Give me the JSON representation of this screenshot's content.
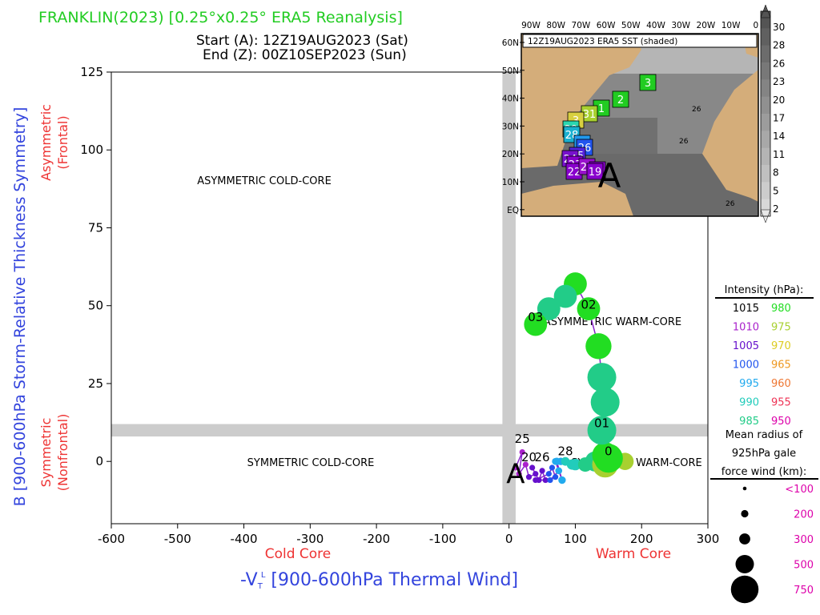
{
  "title": "FRANKLIN(2023) [0.25°x0.25° ERA5 Reanalysis]",
  "start_label": "Start (A): 12Z19AUG2023 (Sat)",
  "end_label": "End (Z): 00Z10SEP2023 (Sun)",
  "ylabel": "B [900-600hPa Storm-Relative Thickness Symmetry]",
  "ylabel_top": "Asymmetric",
  "ylabel_top2": "(Frontal)",
  "ylabel_bottom": "Symmetric",
  "ylabel_bottom2": "(Nonfrontal)",
  "xlabel": "-V",
  "xlabel_sub": "T",
  "xlabel_sup": "L",
  "xlabel_rest": " [900-600hPa Thermal Wind]",
  "xlabel_left": "Cold Core",
  "xlabel_right": "Warm Core",
  "quadrants": {
    "asym_cold": "ASYMMETRIC COLD-CORE",
    "asym_warm": "ASYMMETRIC WARM-CORE",
    "sym_cold": "SYMMETRIC COLD-CORE",
    "sym_warm": "SYMMETRIC WARM-CORE"
  },
  "colors": {
    "title": "#22cc22",
    "ylabel": "#3344dd",
    "subaxis": "#ee3333",
    "magenta": "#dd00aa",
    "zeroband": "#cccccc"
  },
  "inset": {
    "title": "12Z19AUG2023 ERA5 SST (shaded)",
    "lon_labels": [
      "90W",
      "80W",
      "70W",
      "60W",
      "50W",
      "40W",
      "30W",
      "20W",
      "10W",
      "0"
    ],
    "lat_labels": [
      "60N",
      "50N",
      "40N",
      "30N",
      "20N",
      "10N",
      "EQ"
    ],
    "contour_labels": [
      "26",
      "26",
      "26"
    ],
    "colorbar_labels": [
      "30",
      "28",
      "26",
      "23",
      "20",
      "17",
      "14",
      "11",
      "8",
      "5",
      "2"
    ],
    "start_marker": "A",
    "track_markers": [
      {
        "label": "3",
        "color": "#22cc22"
      },
      {
        "label": "2",
        "color": "#22cc22"
      },
      {
        "label": "1",
        "color": "#22cc22"
      },
      {
        "label": "31",
        "color": "#a8d030"
      },
      {
        "label": "3",
        "color": "#d8d040"
      },
      {
        "label": "29",
        "color": "#2ad6b0"
      },
      {
        "label": "28",
        "color": "#1ab0d0"
      },
      {
        "label": "27",
        "color": "#2299ee"
      },
      {
        "label": "26",
        "color": "#2255ee"
      },
      {
        "label": "25",
        "color": "#5522dd"
      },
      {
        "label": "24",
        "color": "#7711cc"
      },
      {
        "label": "23",
        "color": "#8800cc"
      },
      {
        "label": "22",
        "color": "#8800cc"
      },
      {
        "label": "21",
        "color": "#9911cc"
      },
      {
        "label": "20",
        "color": "#8800cc"
      },
      {
        "label": "19",
        "color": "#8800cc"
      }
    ]
  },
  "legend": {
    "intensity_title": "Intensity (hPa):",
    "intensity": [
      {
        "left": "1015",
        "left_color": "#000000",
        "right": "980",
        "right_color": "#22dd22"
      },
      {
        "left": "1010",
        "left_color": "#aa22cc",
        "right": "975",
        "right_color": "#a8d030"
      },
      {
        "left": "1005",
        "left_color": "#6611cc",
        "right": "970",
        "right_color": "#ddcc22"
      },
      {
        "left": "1000",
        "left_color": "#2255ee",
        "right": "965",
        "right_color": "#ee9922"
      },
      {
        "left": "995",
        "left_color": "#22aaee",
        "right": "960",
        "right_color": "#ee7733"
      },
      {
        "left": "990",
        "left_color": "#22ccbb",
        "right": "955",
        "right_color": "#ee3355"
      },
      {
        "left": "985",
        "left_color": "#22cc88",
        "right": "950",
        "right_color": "#dd00aa"
      }
    ],
    "radius_title_1": "Mean radius of",
    "radius_title_2": "925hPa gale",
    "radius_title_3": "force wind (km):",
    "radius": [
      {
        "label": "<100",
        "size": 1
      },
      {
        "label": "200",
        "size": 2
      },
      {
        "label": "300",
        "size": 3
      },
      {
        "label": "500",
        "size": 5
      },
      {
        "label": "750",
        "size": 7.5
      }
    ]
  },
  "chart_data": {
    "type": "scatter",
    "title": "FRANKLIN(2023) [0.25°x0.25° ERA5 Reanalysis]",
    "xlabel": "-VTL [900-600hPa Thermal Wind]",
    "ylabel": "B [900-600hPa Storm-Relative Thickness Symmetry]",
    "xlim": [
      -600,
      300
    ],
    "ylim": [
      -20,
      125
    ],
    "xticks": [
      -600,
      -500,
      -400,
      -300,
      -200,
      -100,
      0,
      100,
      200,
      300
    ],
    "yticks": [
      0,
      25,
      50,
      75,
      100,
      125
    ],
    "grid": false,
    "start_label": "A",
    "series": [
      {
        "points": [
          {
            "x": 10,
            "y": -2,
            "hpa": 1010,
            "r": 1
          },
          {
            "x": 20,
            "y": 3,
            "hpa": 1010,
            "r": 1
          },
          {
            "x": 15,
            "y": -4,
            "hpa": 1010,
            "r": 1
          },
          {
            "x": 25,
            "y": -1,
            "hpa": 1010,
            "r": 1
          },
          {
            "x": 30,
            "y": -5,
            "hpa": 1005,
            "r": 1
          },
          {
            "x": 40,
            "y": -4,
            "hpa": 1005,
            "r": 1
          },
          {
            "x": 35,
            "y": -2,
            "hpa": 1005,
            "r": 1
          },
          {
            "x": 45,
            "y": -6,
            "hpa": 1005,
            "r": 1
          },
          {
            "x": 50,
            "y": -3,
            "hpa": 1005,
            "r": 1
          },
          {
            "x": 55,
            "y": -6,
            "hpa": 1005,
            "r": 1
          },
          {
            "x": 40,
            "y": -6,
            "hpa": 1005,
            "r": 1
          },
          {
            "x": 60,
            "y": -4,
            "hpa": 1000,
            "r": 1
          },
          {
            "x": 65,
            "y": -2,
            "hpa": 1000,
            "r": 1
          },
          {
            "x": 70,
            "y": -5,
            "hpa": 1000,
            "r": 1
          },
          {
            "x": 62,
            "y": -6,
            "hpa": 1000,
            "r": 1
          },
          {
            "x": 75,
            "y": -3,
            "hpa": 995,
            "r": 1.2
          },
          {
            "x": 70,
            "y": 0,
            "hpa": 995,
            "r": 1.2
          },
          {
            "x": 80,
            "y": -6,
            "hpa": 995,
            "r": 1.3
          },
          {
            "x": 72,
            "y": 0,
            "hpa": 995,
            "r": 1.3
          },
          {
            "x": 78,
            "y": 0,
            "hpa": 995,
            "r": 1.3
          },
          {
            "x": 85,
            "y": 0,
            "hpa": 990,
            "r": 1.5
          },
          {
            "x": 95,
            "y": -1,
            "hpa": 990,
            "r": 1.8
          },
          {
            "x": 100,
            "y": -1,
            "hpa": 990,
            "r": 2
          },
          {
            "x": 115,
            "y": -1,
            "hpa": 985,
            "r": 2.5
          },
          {
            "x": 130,
            "y": 0,
            "hpa": 985,
            "r": 3.5
          },
          {
            "x": 145,
            "y": -1,
            "hpa": 975,
            "r": 4.5
          },
          {
            "x": 150,
            "y": 0,
            "hpa": 970,
            "r": 4
          },
          {
            "x": 175,
            "y": 0,
            "hpa": 975,
            "r": 3
          },
          {
            "x": 150,
            "y": 1,
            "hpa": 980,
            "r": 5
          },
          {
            "x": 145,
            "y": 2,
            "hpa": 980,
            "r": 4.5
          },
          {
            "x": 140,
            "y": 10,
            "hpa": 985,
            "r": 5
          },
          {
            "x": 145,
            "y": 19,
            "hpa": 985,
            "r": 5
          },
          {
            "x": 140,
            "y": 27,
            "hpa": 985,
            "r": 5
          },
          {
            "x": 135,
            "y": 37,
            "hpa": 980,
            "r": 4.5
          },
          {
            "x": 120,
            "y": 49,
            "hpa": 980,
            "r": 4
          },
          {
            "x": 100,
            "y": 57,
            "hpa": 980,
            "r": 4
          },
          {
            "x": 85,
            "y": 53,
            "hpa": 985,
            "r": 4
          },
          {
            "x": 60,
            "y": 49,
            "hpa": 985,
            "r": 4
          },
          {
            "x": 40,
            "y": 44,
            "hpa": 980,
            "r": 4
          }
        ]
      }
    ],
    "annotations": [
      {
        "text": "25",
        "x": 20,
        "y": 6
      },
      {
        "text": "20",
        "x": 30,
        "y": 0
      },
      {
        "text": "26",
        "x": 50,
        "y": 0
      },
      {
        "text": "28",
        "x": 85,
        "y": 2
      },
      {
        "text": "0",
        "x": 150,
        "y": 2
      },
      {
        "text": "01",
        "x": 140,
        "y": 11
      },
      {
        "text": "02",
        "x": 120,
        "y": 49
      },
      {
        "text": "03",
        "x": 40,
        "y": 45
      }
    ]
  }
}
